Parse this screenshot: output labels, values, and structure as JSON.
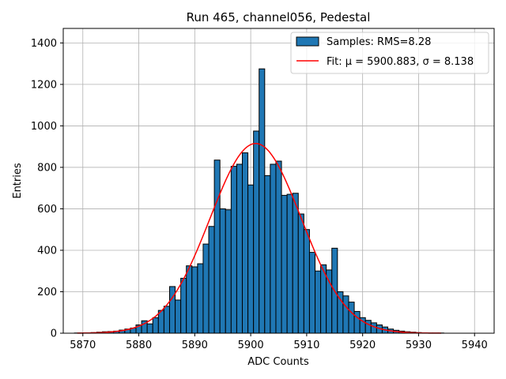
{
  "chart_data": {
    "type": "bar",
    "title": "Run 465, channel056, Pedestal",
    "xlabel": "ADC Counts",
    "ylabel": "Entries",
    "xlim": [
      5866.5,
      5943.5
    ],
    "ylim": [
      0,
      1470
    ],
    "xticks": [
      5870,
      5880,
      5890,
      5900,
      5910,
      5920,
      5930,
      5940
    ],
    "yticks": [
      0,
      200,
      400,
      600,
      800,
      1000,
      1200,
      1400
    ],
    "grid": true,
    "legend_placement": "top-right",
    "bin_width": 1,
    "histogram": {
      "name": "Samples: RMS=8.28",
      "color": "#1f77b4",
      "bins": [
        5869,
        5870,
        5871,
        5872,
        5873,
        5874,
        5875,
        5876,
        5877,
        5878,
        5879,
        5880,
        5881,
        5882,
        5883,
        5884,
        5885,
        5886,
        5887,
        5888,
        5889,
        5890,
        5891,
        5892,
        5893,
        5894,
        5895,
        5896,
        5897,
        5898,
        5899,
        5900,
        5901,
        5902,
        5903,
        5904,
        5905,
        5906,
        5907,
        5908,
        5909,
        5910,
        5911,
        5912,
        5913,
        5914,
        5915,
        5916,
        5917,
        5918,
        5919,
        5920,
        5921,
        5922,
        5923,
        5924,
        5925,
        5926,
        5927,
        5928,
        5929,
        5930,
        5931,
        5932,
        5933,
        5934
      ],
      "values": [
        1,
        1,
        2,
        3,
        5,
        7,
        8,
        10,
        15,
        20,
        25,
        40,
        60,
        45,
        75,
        110,
        130,
        225,
        160,
        265,
        325,
        320,
        335,
        430,
        515,
        835,
        600,
        595,
        805,
        815,
        870,
        715,
        975,
        1275,
        760,
        815,
        830,
        665,
        670,
        675,
        575,
        500,
        390,
        300,
        330,
        305,
        410,
        200,
        180,
        150,
        105,
        75,
        62,
        50,
        40,
        30,
        20,
        14,
        10,
        7,
        5,
        3,
        2,
        1,
        1,
        1
      ]
    },
    "fit": {
      "name": "Fit: μ = 5900.883, σ = 8.138",
      "color": "#ff0000",
      "mu": 5900.883,
      "sigma": 8.138,
      "amplitude": 915,
      "x_range": [
        5869,
        5934
      ]
    }
  }
}
